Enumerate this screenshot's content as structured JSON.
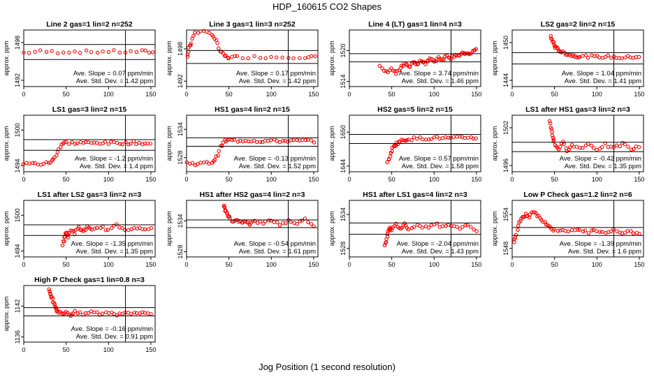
{
  "title": "HDP_160615  CO2 Shapes",
  "xlabel": "Jog Position (1 second resolution)",
  "colors": {
    "points": "#ff0000",
    "axes": "#000000",
    "background": "#ffffff"
  },
  "chart_data": [
    {
      "type": "scatter",
      "title": "Line 2 gas=1 lin=2 n=252",
      "ylabel": "approx. ppm",
      "xlim": [
        0,
        155
      ],
      "ylim": [
        1491,
        1500
      ],
      "xticks": [
        0,
        50,
        100,
        150
      ],
      "yticks": [
        1492,
        1498
      ],
      "hlines": [
        1497.7,
        1495.3
      ],
      "vline": 120,
      "annotation_slope": "Ave. Slope = 0.07 ppm/min",
      "annotation_std": "Ave. Std. Dev. = 1.42 ppm",
      "x": [
        0,
        20,
        40,
        60,
        80,
        100,
        120,
        140,
        152
      ],
      "y": [
        1496.4,
        1496.6,
        1496.5,
        1496.6,
        1496.5,
        1496.6,
        1496.5,
        1496.6,
        1496.5
      ]
    },
    {
      "type": "scatter",
      "title": "Line 3 gas=1 lin=3 n=252",
      "ylabel": "approx. ppm",
      "xlim": [
        0,
        155
      ],
      "ylim": [
        1491,
        1501.5
      ],
      "xticks": [
        0,
        50,
        100,
        150
      ],
      "yticks": [
        1492,
        1498
      ],
      "hlines": [
        1497.7,
        1495.3
      ],
      "vline": 120,
      "annotation_slope": "Ave. Slope = 0.17 ppm/min",
      "annotation_std": "Ave. Std. Dev. = 1.42 ppm",
      "x": [
        1,
        3,
        5,
        10,
        20,
        30,
        35,
        40,
        45,
        50,
        60,
        80,
        100,
        120,
        140,
        152
      ],
      "y": [
        1496.5,
        1498.3,
        1499.0,
        1501.2,
        1501.1,
        1500.8,
        1499.5,
        1497.5,
        1496.7,
        1496.4,
        1496.5,
        1496.5,
        1496.5,
        1496.5,
        1496.5,
        1496.5
      ]
    },
    {
      "type": "scatter",
      "title": "Line 4 (LT) gas=1 lin=4 n=3",
      "ylabel": "approx. ppm",
      "xlim": [
        0,
        155
      ],
      "ylim": [
        1513,
        1524
      ],
      "xticks": [
        0,
        50,
        100,
        150
      ],
      "yticks": [
        1514,
        1520
      ],
      "hlines": [
        1519.4,
        1517.8
      ],
      "vline": 120,
      "annotation_slope": "Ave. Slope = 3.74 ppm/min",
      "annotation_std": "Ave. Std. Dev. = 1.46 ppm",
      "x": [
        36,
        44,
        50,
        55,
        60,
        65,
        70,
        75,
        80,
        85,
        90,
        95,
        100,
        105,
        110,
        115,
        120,
        125,
        130,
        135,
        140,
        145,
        150
      ],
      "y": [
        1516.8,
        1515.8,
        1516.5,
        1515.5,
        1516.5,
        1517.4,
        1516.7,
        1517.8,
        1517.2,
        1518.1,
        1517.6,
        1518.4,
        1517.9,
        1518.7,
        1518.3,
        1519.0,
        1518.6,
        1519.3,
        1518.9,
        1519.6,
        1519.2,
        1519.8,
        1520.2
      ]
    },
    {
      "type": "scatter",
      "title": "LS2 gas=2 lin=2 n=15",
      "ylabel": "approx. ppm",
      "xlim": [
        0,
        155
      ],
      "ylim": [
        1443,
        1452
      ],
      "xticks": [
        0,
        50,
        100,
        150
      ],
      "yticks": [
        1444,
        1450
      ],
      "hlines": [
        1448.4,
        1446.6
      ],
      "vline": 120,
      "annotation_slope": "Ave. Slope = 1.04 ppm/min",
      "annotation_std": "Ave. Std. Dev. = 1.41 ppm",
      "x": [
        45,
        48,
        50,
        53,
        56,
        60,
        65,
        70,
        75,
        80,
        90,
        100,
        110,
        120,
        130,
        140,
        150
      ],
      "y": [
        1451.0,
        1450.2,
        1449.5,
        1449.0,
        1448.7,
        1448.4,
        1448.2,
        1448.0,
        1447.9,
        1447.8,
        1447.8,
        1447.7,
        1447.8,
        1447.7,
        1447.6,
        1447.7,
        1447.8
      ]
    },
    {
      "type": "scatter",
      "title": "LS1 gas=3 lin=2 n=15",
      "ylabel": "approx. ppm",
      "xlim": [
        0,
        155
      ],
      "ylim": [
        1493,
        1502.5
      ],
      "xticks": [
        0,
        50,
        100,
        150
      ],
      "yticks": [
        1494,
        1500
      ],
      "hlines": [
        1498.4,
        1496.6
      ],
      "vline": 120,
      "annotation_slope": "Ave. Slope = -1.2 ppm/min",
      "annotation_std": "Ave. Std. Dev. = 1.4 ppm",
      "x": [
        0,
        10,
        20,
        30,
        35,
        40,
        45,
        50,
        60,
        70,
        80,
        90,
        100,
        110,
        120,
        130,
        140,
        150
      ],
      "y": [
        1494.3,
        1494.4,
        1494.3,
        1494.5,
        1495.0,
        1496.4,
        1497.6,
        1497.9,
        1497.8,
        1497.9,
        1497.8,
        1497.9,
        1497.8,
        1497.9,
        1497.8,
        1497.9,
        1497.8,
        1497.7
      ]
    },
    {
      "type": "scatter",
      "title": "HS1 gas=4 lin=2 n=15",
      "ylabel": "approx. ppm",
      "xlim": [
        0,
        155
      ],
      "ylim": [
        1525,
        1537
      ],
      "xticks": [
        0,
        50,
        100,
        150
      ],
      "yticks": [
        1528,
        1534
      ],
      "hlines": [
        1532.2,
        1530.4
      ],
      "vline": 120,
      "annotation_slope": "Ave. Slope = -0.13 ppm/min",
      "annotation_std": "Ave. Std. Dev. = 1.52 ppm",
      "x": [
        0,
        10,
        20,
        30,
        35,
        40,
        45,
        50,
        60,
        70,
        80,
        90,
        100,
        110,
        120,
        130,
        140,
        150
      ],
      "y": [
        1526.9,
        1526.7,
        1526.8,
        1527.0,
        1528.0,
        1530.2,
        1531.5,
        1531.7,
        1531.6,
        1531.7,
        1531.6,
        1531.5,
        1531.6,
        1531.5,
        1531.6,
        1531.5,
        1531.6,
        1531.5
      ]
    },
    {
      "type": "scatter",
      "title": "HS2 gas=5 lin=2 n=15",
      "ylabel": "approx. ppm",
      "xlim": [
        0,
        155
      ],
      "ylim": [
        1643,
        1653
      ],
      "xticks": [
        0,
        50,
        100,
        150
      ],
      "yticks": [
        1644,
        1650
      ],
      "hlines": [
        1649.6,
        1648.0
      ],
      "vline": 120,
      "annotation_slope": "Ave. Slope = 0.57 ppm/min",
      "annotation_std": "Ave. Std. Dev. = 1.58 ppm",
      "x": [
        45,
        48,
        50,
        53,
        56,
        60,
        65,
        70,
        80,
        90,
        100,
        110,
        120,
        130,
        140,
        150
      ],
      "y": [
        1644.6,
        1645.8,
        1646.8,
        1647.6,
        1648.0,
        1648.4,
        1648.6,
        1648.8,
        1648.9,
        1648.9,
        1649.0,
        1649.0,
        1648.9,
        1649.0,
        1649.1,
        1649.0
      ]
    },
    {
      "type": "scatter",
      "title": "LS1 after HS1 gas=3 lin=2 n=3",
      "ylabel": "approx. ppm",
      "xlim": [
        0,
        155
      ],
      "ylim": [
        1495,
        1504
      ],
      "xticks": [
        0,
        50,
        100,
        150
      ],
      "yticks": [
        1496,
        1502
      ],
      "hlines": [
        1499.7,
        1498.2
      ],
      "vline": 120,
      "annotation_slope": "Ave. Slope = -0.42 ppm/min",
      "annotation_std": "Ave. Std. Dev. = 1.35 ppm",
      "x": [
        44,
        46,
        48,
        50,
        55,
        60,
        65,
        70,
        80,
        90,
        100,
        110,
        120,
        130,
        140,
        150
      ],
      "y": [
        1503.0,
        1501.8,
        1500.5,
        1499.3,
        1498.7,
        1499.6,
        1498.5,
        1499.2,
        1498.8,
        1499.4,
        1498.6,
        1499.3,
        1498.7,
        1499.5,
        1498.6,
        1499.0
      ]
    },
    {
      "type": "scatter",
      "title": "LS1 after LS2 gas=3 lin=2 n=3",
      "ylabel": "approx. ppm",
      "xlim": [
        0,
        155
      ],
      "ylim": [
        1493,
        1502.5
      ],
      "xticks": [
        0,
        50,
        100,
        150
      ],
      "yticks": [
        1494,
        1500
      ],
      "hlines": [
        1498.4,
        1496.6
      ],
      "vline": 120,
      "annotation_slope": "Ave. Slope = -1.35 ppm/min",
      "annotation_std": "Ave. Std. Dev. = 1.35 ppm",
      "x": [
        46,
        48,
        50,
        52,
        55,
        60,
        65,
        70,
        75,
        80,
        90,
        100,
        110,
        120,
        130,
        140,
        150
      ],
      "y": [
        1495.0,
        1496.3,
        1497.2,
        1496.2,
        1497.6,
        1497.0,
        1497.9,
        1497.3,
        1498.0,
        1497.4,
        1498.1,
        1497.5,
        1498.3,
        1497.6,
        1498.0,
        1497.5,
        1497.8
      ]
    },
    {
      "type": "scatter",
      "title": "HS1 after HS2 gas=4 lin=2 n=3",
      "ylabel": "approx. ppm",
      "xlim": [
        0,
        155
      ],
      "ylim": [
        1527,
        1538
      ],
      "xticks": [
        0,
        50,
        100,
        150
      ],
      "yticks": [
        1528,
        1534
      ],
      "hlines": [
        1534.2,
        1532.7
      ],
      "vline": 120,
      "annotation_slope": "Ave. Slope = -0.54 ppm/min",
      "annotation_std": "Ave. Std. Dev. = 1.61 ppm",
      "x": [
        44,
        46,
        48,
        50,
        55,
        60,
        65,
        70,
        75,
        80,
        90,
        100,
        110,
        120,
        130,
        140,
        150
      ],
      "y": [
        1537.0,
        1536.2,
        1535.2,
        1534.6,
        1533.8,
        1534.4,
        1533.5,
        1534.1,
        1533.4,
        1534.0,
        1533.5,
        1534.2,
        1533.3,
        1534.0,
        1533.6,
        1534.3,
        1533.2
      ]
    },
    {
      "type": "scatter",
      "title": "HS1 after LS1 gas=4 lin=2 n=3",
      "ylabel": "approx. ppm",
      "xlim": [
        0,
        155
      ],
      "ylim": [
        1526.5,
        1536.5
      ],
      "xticks": [
        0,
        50,
        100,
        150
      ],
      "yticks": [
        1528,
        1534
      ],
      "hlines": [
        1532.5,
        1530.5
      ],
      "vline": 120,
      "annotation_slope": "Ave. Slope = -2.04 ppm/min",
      "annotation_std": "Ave. Std. Dev. = 1.43 ppm",
      "x": [
        42,
        44,
        46,
        48,
        50,
        55,
        60,
        65,
        70,
        80,
        90,
        100,
        110,
        120,
        130,
        140,
        150
      ],
      "y": [
        1528.4,
        1529.8,
        1531.0,
        1531.8,
        1531.2,
        1532.2,
        1531.5,
        1532.3,
        1531.6,
        1532.1,
        1531.7,
        1532.4,
        1531.8,
        1532.2,
        1531.6,
        1532.0,
        1531.3
      ]
    },
    {
      "type": "scatter",
      "title": "Low P Check gas=1.2 lin=2 n=6",
      "ylabel": "approx. ppm",
      "xlim": [
        0,
        155
      ],
      "ylim": [
        1546.5,
        1556.5
      ],
      "xticks": [
        0,
        50,
        100,
        150
      ],
      "yticks": [
        1548,
        1554
      ],
      "hlines": [
        1551.7,
        1550.3
      ],
      "vline": 120,
      "annotation_slope": "Ave. Slope = -1.39 ppm/min",
      "annotation_std": "Ave. Std. Dev. = 1.6 ppm",
      "x": [
        2,
        5,
        8,
        12,
        16,
        20,
        25,
        30,
        35,
        40,
        45,
        50,
        60,
        70,
        80,
        90,
        100,
        110,
        120,
        130,
        140,
        150
      ],
      "y": [
        1549.0,
        1550.5,
        1552.6,
        1553.3,
        1554.0,
        1553.5,
        1554.6,
        1553.8,
        1553.2,
        1552.4,
        1551.7,
        1551.2,
        1551.4,
        1551.0,
        1551.3,
        1550.9,
        1551.2,
        1551.0,
        1551.2,
        1550.8,
        1551.1,
        1550.5
      ]
    },
    {
      "type": "scatter",
      "title": "High P Check gas=1 lin=0.8 n=3",
      "ylabel": "approx. ppm",
      "xlim": [
        0,
        155
      ],
      "ylim": [
        1135,
        1146
      ],
      "xticks": [
        0,
        50,
        100,
        150
      ],
      "yticks": [
        1136,
        1142
      ],
      "hlines": [
        1141.7,
        1140.1
      ],
      "vline": 120,
      "annotation_slope": "Ave. Slope = -0.16 ppm/min",
      "annotation_std": "Ave. Std. Dev. = 0.91 ppm",
      "x": [
        30,
        32,
        34,
        36,
        38,
        40,
        45,
        50,
        55,
        60,
        70,
        80,
        90,
        100,
        110,
        120,
        130,
        140,
        150
      ],
      "y": [
        1145.0,
        1144.3,
        1143.3,
        1142.4,
        1141.6,
        1141.0,
        1140.5,
        1140.9,
        1140.3,
        1140.8,
        1140.4,
        1140.9,
        1140.5,
        1140.8,
        1140.4,
        1140.9,
        1140.5,
        1140.8,
        1140.6
      ]
    }
  ]
}
